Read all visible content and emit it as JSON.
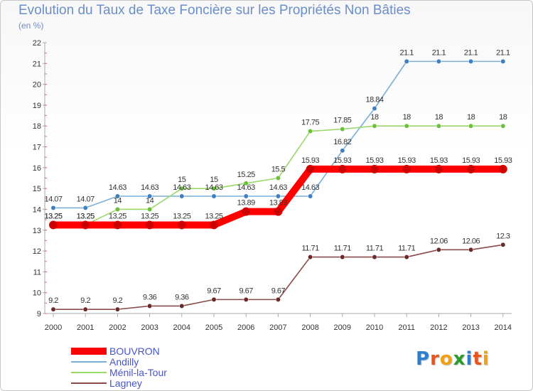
{
  "title": "Evolution du Taux de Taxe Foncière sur les Propriétés Non Bâties",
  "unit": "(en %)",
  "logo": {
    "text": "Proxiti",
    "colors": [
      "#2a7fd0",
      "#e8541c",
      "#f0a010",
      "#2a9a2a",
      "#2a7fd0",
      "#e8541c",
      "#f0a010"
    ]
  },
  "chart_data": {
    "type": "line",
    "title": "Evolution du Taux de Taxe Foncière sur les Propriétés Non Bâties",
    "ylabel": "(en %)",
    "xlabel": "",
    "ylim": [
      9,
      22
    ],
    "yticks": [
      9,
      10,
      11,
      12,
      13,
      14,
      15,
      16,
      17,
      18,
      19,
      20,
      21,
      22
    ],
    "grid": false,
    "legend_position": "bottom-left",
    "x": [
      "2000",
      "2001",
      "2002",
      "2003",
      "2004",
      "2005",
      "2006",
      "2007",
      "2008",
      "2009",
      "2010",
      "2011",
      "2012",
      "2013",
      "2014"
    ],
    "series": [
      {
        "name": "BOUVRON",
        "color": "#ff0000",
        "dot": "#cc0000",
        "thick": true,
        "values": [
          13.25,
          13.25,
          13.25,
          13.25,
          13.25,
          13.25,
          13.89,
          13.89,
          15.93,
          15.93,
          15.93,
          15.93,
          15.93,
          15.93,
          15.93
        ],
        "labels": [
          "13.25",
          "13.25",
          "13.25",
          "13.25",
          "13.25",
          "13.25",
          "13.89",
          "13.89",
          "15.93",
          "15.93",
          "15.93",
          "15.93",
          "15.93",
          "15.93",
          "15.93"
        ]
      },
      {
        "name": "Andilly",
        "color": "#7aaed6",
        "dot": "#3d7fc0",
        "thick": false,
        "values": [
          14.07,
          14.07,
          14.63,
          14.63,
          14.63,
          14.63,
          14.63,
          14.63,
          14.63,
          16.82,
          18.84,
          21.1,
          21.1,
          21.1,
          21.1
        ],
        "labels": [
          "14.07",
          "14.07",
          "14.63",
          "14.63",
          "14.63",
          "14.63",
          "14.63",
          "14.63",
          "14.63",
          "16.82",
          "18.84",
          "21.1",
          "21.1",
          "21.1",
          "21.1"
        ]
      },
      {
        "name": "Ménil-la-Tour",
        "color": "#9ad86a",
        "dot": "#6cc03a",
        "thick": false,
        "values": [
          13.25,
          13.25,
          14,
          14,
          15,
          15,
          15.25,
          15.5,
          17.75,
          17.85,
          18,
          18,
          18,
          18,
          18
        ],
        "labels": [
          "13.25",
          "13.25",
          "14",
          "14",
          "15",
          "15",
          "15.25",
          "15.5",
          "17.75",
          "17.85",
          "18",
          "18",
          "18",
          "18",
          "18"
        ]
      },
      {
        "name": "Lagney",
        "color": "#8a4a4a",
        "dot": "#6a2a2a",
        "thick": false,
        "values": [
          9.2,
          9.2,
          9.2,
          9.36,
          9.36,
          9.67,
          9.67,
          9.67,
          11.71,
          11.71,
          11.71,
          11.71,
          12.06,
          12.06,
          12.3
        ],
        "labels": [
          "9.2",
          "9.2",
          "9.2",
          "9.36",
          "9.36",
          "9.67",
          "9.67",
          "9.67",
          "11.71",
          "11.71",
          "11.71",
          "11.71",
          "12.06",
          "12.06",
          "12.3"
        ]
      }
    ]
  }
}
